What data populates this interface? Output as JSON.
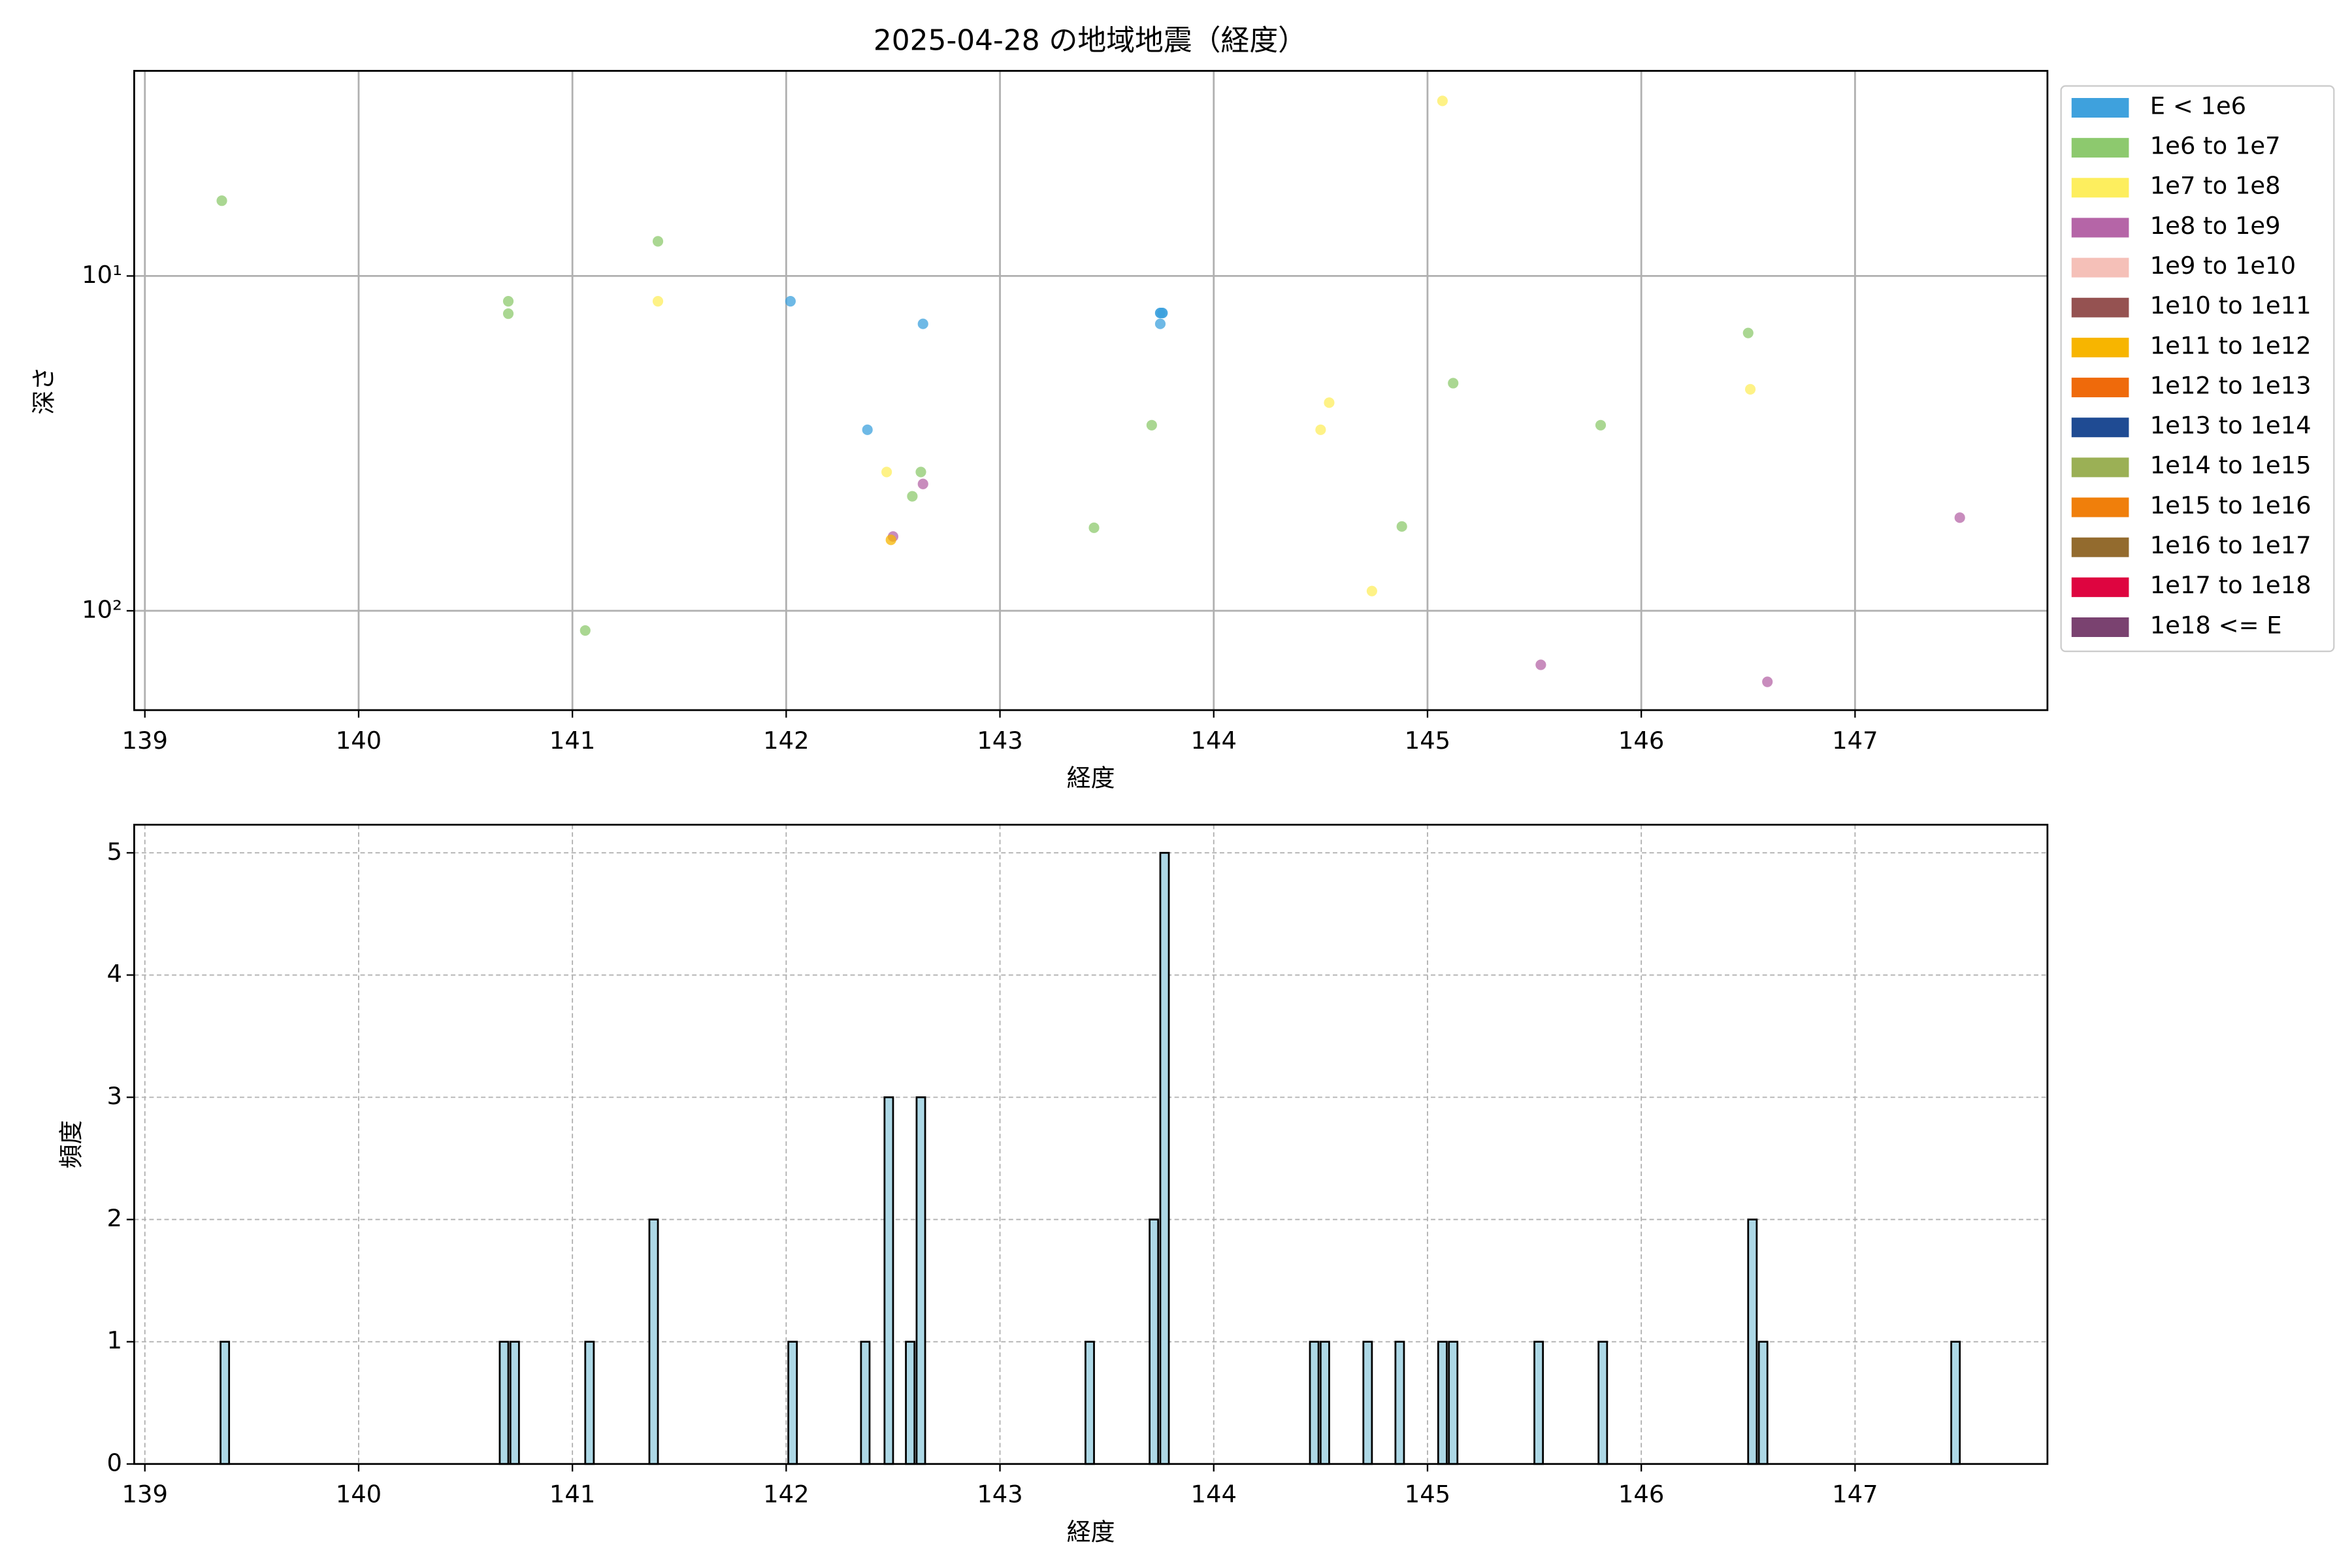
{
  "chart_data": [
    {
      "type": "scatter",
      "title": "2025-04-28 の地域地震（経度）",
      "xlabel": "経度",
      "ylabel": "深さ",
      "xlim": [
        138.95,
        147.9
      ],
      "xticks": [
        139,
        140,
        141,
        142,
        143,
        144,
        145,
        146,
        147
      ],
      "ylim": [
        198,
        2.44
      ],
      "ylog": true,
      "yticks": [
        {
          "value": 10,
          "label": "10¹"
        },
        {
          "value": 100,
          "label": "10²"
        }
      ],
      "grid": true,
      "grid_style": "solid",
      "legend": "outside right",
      "series": [
        {
          "name": "E < 1e6",
          "color": "#3ea1dd",
          "x": [
            142.02,
            142.38,
            142.64,
            143.75,
            143.75,
            143.75,
            143.76,
            143.76
          ],
          "values": [
            11.9,
            28.8,
            13.9,
            12.9,
            12.9,
            13.9,
            12.9,
            12.9
          ]
        },
        {
          "name": "1e6 to 1e7",
          "color": "#8dc96e",
          "x": [
            139.36,
            140.7,
            140.7,
            141.06,
            141.4,
            142.59,
            142.63,
            143.44,
            143.71,
            144.88,
            145.12,
            145.81,
            146.5
          ],
          "values": [
            5.96,
            11.9,
            12.96,
            114.5,
            7.88,
            45.5,
            38.5,
            56.5,
            27.9,
            56,
            20.9,
            27.9,
            14.8
          ]
        },
        {
          "name": "1e7 to 1e8",
          "color": "#fdee5e",
          "x": [
            141.4,
            142.47,
            144.5,
            144.54,
            144.74,
            145.07,
            146.51
          ],
          "values": [
            11.9,
            38.5,
            28.8,
            23.9,
            87.3,
            3.0,
            21.8
          ]
        },
        {
          "name": "1e8 to 1e9",
          "color": "#b565a7",
          "x": [
            142.5,
            142.64,
            145.53,
            146.59,
            147.49
          ],
          "values": [
            60,
            41.8,
            145,
            163,
            52.7
          ]
        },
        {
          "name": "1e9 to 1e10",
          "color": "#f5c0b8",
          "x": [],
          "values": []
        },
        {
          "name": "1e10 to 1e11",
          "color": "#955251",
          "x": [],
          "values": []
        },
        {
          "name": "1e11 to 1e12",
          "color": "#f7b500",
          "x": [
            142.49
          ],
          "values": [
            61.4
          ]
        },
        {
          "name": "1e12 to 1e13",
          "color": "#ef6a0b",
          "x": [],
          "values": []
        },
        {
          "name": "1e13 to 1e14",
          "color": "#1f4b93",
          "x": [],
          "values": []
        },
        {
          "name": "1e14 to 1e15",
          "color": "#9bb055",
          "x": [],
          "values": []
        },
        {
          "name": "1e15 to 1e16",
          "color": "#f07f0b",
          "x": [],
          "values": []
        },
        {
          "name": "1e16 to 1e17",
          "color": "#936b2e",
          "x": [],
          "values": []
        },
        {
          "name": "1e17 to 1e18",
          "color": "#de0540",
          "x": [],
          "values": []
        },
        {
          "name": "1e18 <= E",
          "color": "#7a4270",
          "x": [],
          "values": []
        }
      ]
    },
    {
      "type": "histogram",
      "xlabel": "経度",
      "ylabel": "頻度",
      "color": "#add8e6",
      "xlim": [
        138.95,
        147.9
      ],
      "xticks": [
        139,
        140,
        141,
        142,
        143,
        144,
        145,
        146,
        147
      ],
      "ylim": [
        0,
        5.23
      ],
      "yticks": [
        0,
        1,
        2,
        3,
        4,
        5
      ],
      "grid": true,
      "grid_style": "dashed",
      "bins": [
        139.354,
        139.394,
        140.66,
        140.7,
        140.71,
        140.75,
        141.06,
        141.1,
        141.36,
        141.4,
        142.01,
        142.05,
        142.35,
        142.39,
        142.46,
        142.5,
        142.56,
        142.6,
        142.61,
        142.65,
        143.4,
        143.44,
        143.7,
        143.74,
        143.75,
        143.79,
        144.45,
        144.49,
        144.5,
        144.54,
        144.7,
        144.74,
        144.85,
        144.89,
        145.05,
        145.09,
        145.1,
        145.14,
        145.5,
        145.54,
        145.8,
        145.84,
        146.5,
        146.54,
        146.55,
        146.59,
        147.45,
        147.49
      ],
      "values": [
        1,
        0,
        1,
        0,
        1,
        0,
        1,
        0,
        2,
        0,
        1,
        0,
        1,
        0,
        3,
        0,
        1,
        0,
        3,
        0,
        1,
        0,
        2,
        0,
        5,
        0,
        1,
        0,
        1,
        0,
        1,
        0,
        1,
        0,
        1,
        0,
        1,
        0,
        1,
        0,
        1,
        0,
        2,
        0,
        1,
        0,
        1
      ]
    }
  ]
}
